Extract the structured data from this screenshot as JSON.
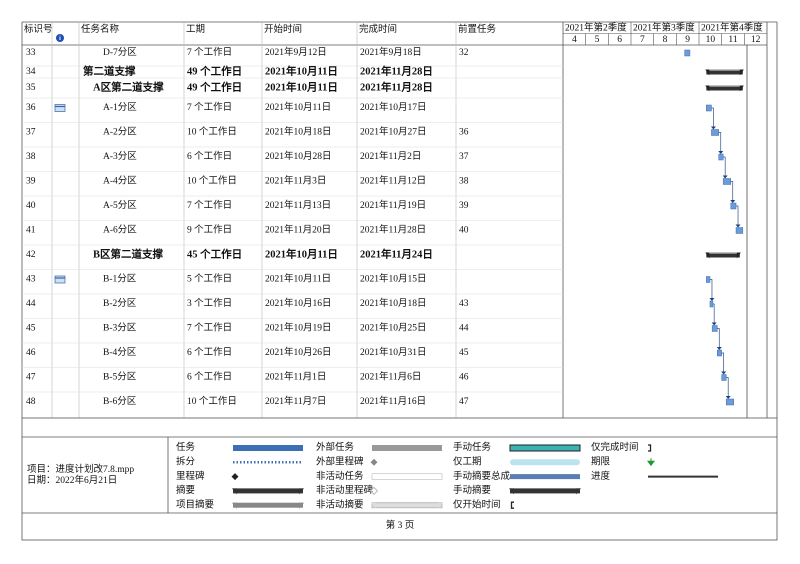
{
  "columns": {
    "id": "标识号",
    "name": "任务名称",
    "duration": "工期",
    "start": "开始时间",
    "finish": "完成时间",
    "predecessors": "前置任务"
  },
  "timescale": {
    "quarters": [
      "2021年第2季度",
      "2021年第3季度",
      "2021年第4季度"
    ],
    "months": [
      4,
      5,
      6,
      7,
      8,
      9,
      10,
      11,
      12
    ]
  },
  "tasks": [
    {
      "id": "33",
      "name": "D-7分区",
      "duration": "7 个工作日",
      "start": "2021年9月12日",
      "finish": "2021年9月18日",
      "predecessors": "32",
      "summary": false,
      "outline_level": 3,
      "calendar_icon": false
    },
    {
      "id": "34",
      "name": "第二道支撑",
      "duration": "49 个工作日",
      "start": "2021年10月11日",
      "finish": "2021年11月28日",
      "predecessors": null,
      "summary": true,
      "outline_level": 1,
      "calendar_icon": false
    },
    {
      "id": "35",
      "name": "A区第二道支撑",
      "duration": "49 个工作日",
      "start": "2021年10月11日",
      "finish": "2021年11月28日",
      "predecessors": null,
      "summary": true,
      "outline_level": 2,
      "calendar_icon": false
    },
    {
      "id": "36",
      "name": "A-1分区",
      "duration": "7 个工作日",
      "start": "2021年10月11日",
      "finish": "2021年10月17日",
      "predecessors": null,
      "summary": false,
      "outline_level": 3,
      "calendar_icon": true
    },
    {
      "id": "37",
      "name": "A-2分区",
      "duration": "10 个工作日",
      "start": "2021年10月18日",
      "finish": "2021年10月27日",
      "predecessors": "36",
      "summary": false,
      "outline_level": 3,
      "calendar_icon": false
    },
    {
      "id": "38",
      "name": "A-3分区",
      "duration": "6 个工作日",
      "start": "2021年10月28日",
      "finish": "2021年11月2日",
      "predecessors": "37",
      "summary": false,
      "outline_level": 3,
      "calendar_icon": false
    },
    {
      "id": "39",
      "name": "A-4分区",
      "duration": "10 个工作日",
      "start": "2021年11月3日",
      "finish": "2021年11月12日",
      "predecessors": "38",
      "summary": false,
      "outline_level": 3,
      "calendar_icon": false
    },
    {
      "id": "40",
      "name": "A-5分区",
      "duration": "7 个工作日",
      "start": "2021年11月13日",
      "finish": "2021年11月19日",
      "predecessors": "39",
      "summary": false,
      "outline_level": 3,
      "calendar_icon": false
    },
    {
      "id": "41",
      "name": "A-6分区",
      "duration": "9 个工作日",
      "start": "2021年11月20日",
      "finish": "2021年11月28日",
      "predecessors": "40",
      "summary": false,
      "outline_level": 3,
      "calendar_icon": false
    },
    {
      "id": "42",
      "name": "B区第二道支撑",
      "duration": "45 个工作日",
      "start": "2021年10月11日",
      "finish": "2021年11月24日",
      "predecessors": null,
      "summary": true,
      "outline_level": 2,
      "calendar_icon": false
    },
    {
      "id": "43",
      "name": "B-1分区",
      "duration": "5 个工作日",
      "start": "2021年10月11日",
      "finish": "2021年10月15日",
      "predecessors": null,
      "summary": false,
      "outline_level": 3,
      "calendar_icon": true
    },
    {
      "id": "44",
      "name": "B-2分区",
      "duration": "3 个工作日",
      "start": "2021年10月16日",
      "finish": "2021年10月18日",
      "predecessors": "43",
      "summary": false,
      "outline_level": 3,
      "calendar_icon": false
    },
    {
      "id": "45",
      "name": "B-3分区",
      "duration": "7 个工作日",
      "start": "2021年10月19日",
      "finish": "2021年10月25日",
      "predecessors": "44",
      "summary": false,
      "outline_level": 3,
      "calendar_icon": false
    },
    {
      "id": "46",
      "name": "B-4分区",
      "duration": "6 个工作日",
      "start": "2021年10月26日",
      "finish": "2021年10月31日",
      "predecessors": "45",
      "summary": false,
      "outline_level": 3,
      "calendar_icon": false
    },
    {
      "id": "47",
      "name": "B-5分区",
      "duration": "6 个工作日",
      "start": "2021年11月1日",
      "finish": "2021年11月6日",
      "predecessors": "46",
      "summary": false,
      "outline_level": 3,
      "calendar_icon": false
    },
    {
      "id": "48",
      "name": "B-6分区",
      "duration": "10 个工作日",
      "start": "2021年11月7日",
      "finish": "2021年11月16日",
      "predecessors": "47",
      "summary": false,
      "outline_level": 3,
      "calendar_icon": false
    }
  ],
  "legend": [
    {
      "label": "任务",
      "style": "task"
    },
    {
      "label": "拆分",
      "style": "split"
    },
    {
      "label": "里程碑",
      "style": "milestone"
    },
    {
      "label": "摘要",
      "style": "summary"
    },
    {
      "label": "项目摘要",
      "style": "project-summary"
    },
    {
      "label": "外部任务",
      "style": "external-task"
    },
    {
      "label": "外部里程碑",
      "style": "external-milestone"
    },
    {
      "label": "非活动任务",
      "style": "inactive-task"
    },
    {
      "label": "非活动里程碑",
      "style": "inactive-milestone"
    },
    {
      "label": "非活动摘要",
      "style": "inactive-summary"
    },
    {
      "label": "手动任务",
      "style": "manual-task"
    },
    {
      "label": "仅工期",
      "style": "duration-only"
    },
    {
      "label": "手动摘要总成",
      "style": "manual-rollup"
    },
    {
      "label": "手动摘要",
      "style": "manual-summary"
    },
    {
      "label": "仅开始时间",
      "style": "start-only"
    },
    {
      "label": "仅完成时间",
      "style": "finish-only"
    },
    {
      "label": "期限",
      "style": "deadline"
    },
    {
      "label": "进度",
      "style": "progress"
    }
  ],
  "footer": {
    "project": "项目：进度计划改7.8.mpp",
    "date": "日期：2022年6月21日",
    "page": "第 3 页"
  }
}
